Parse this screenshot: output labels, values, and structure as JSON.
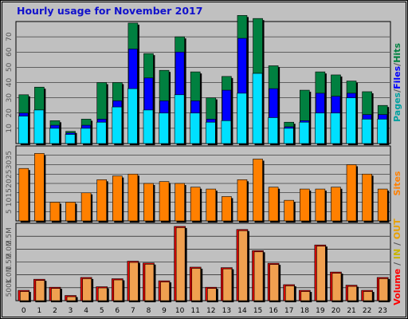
{
  "title": "Hourly usage for November 2017",
  "colors": {
    "pages": "#00a0a0",
    "files": "#0000ff",
    "hits": "#008040",
    "sites": "#ff8000",
    "visits": "#ffff00",
    "volume": "#ff0000",
    "in": "#c8b400",
    "out": "#e8a000",
    "slash": "#555555"
  },
  "chart_data": [
    {
      "type": "bar",
      "panel": "pages_files_hits",
      "categories": [
        "0",
        "1",
        "2",
        "3",
        "4",
        "5",
        "6",
        "7",
        "8",
        "9",
        "10",
        "11",
        "12",
        "13",
        "14",
        "15",
        "16",
        "17",
        "18",
        "19",
        "20",
        "21",
        "22",
        "23"
      ],
      "yticks": [
        10,
        20,
        30,
        40,
        50,
        60,
        70
      ],
      "ylim": [
        0,
        80
      ],
      "side_label": {
        "pages": "Pages",
        "files": "Files",
        "hits": "Hits"
      },
      "series": [
        {
          "name": "Hits",
          "values": [
            32,
            37,
            15,
            8,
            16,
            40,
            40,
            79,
            59,
            48,
            70,
            47,
            30,
            44,
            84,
            82,
            51,
            14,
            35,
            47,
            45,
            41,
            34,
            25
          ]
        },
        {
          "name": "Files",
          "values": [
            20,
            22,
            12,
            7,
            12,
            16,
            28,
            62,
            43,
            28,
            60,
            28,
            16,
            35,
            69,
            46,
            36,
            11,
            15,
            33,
            31,
            33,
            19,
            19
          ]
        },
        {
          "name": "Pages",
          "values": [
            18,
            22,
            10,
            6,
            10,
            14,
            24,
            36,
            22,
            20,
            32,
            20,
            14,
            15,
            33,
            46,
            17,
            10,
            14,
            20,
            20,
            30,
            16,
            16
          ]
        }
      ]
    },
    {
      "type": "bar",
      "panel": "sites",
      "categories": [
        "0",
        "1",
        "2",
        "3",
        "4",
        "5",
        "6",
        "7",
        "8",
        "9",
        "10",
        "11",
        "12",
        "13",
        "14",
        "15",
        "16",
        "17",
        "18",
        "19",
        "20",
        "21",
        "22",
        "23"
      ],
      "yticks": [
        5,
        10,
        15,
        20,
        25,
        30,
        35
      ],
      "ylim": [
        0,
        40
      ],
      "side_label": "Sites",
      "series": [
        {
          "name": "Sites",
          "values": [
            28,
            36,
            10,
            10,
            15,
            22,
            24,
            25,
            20,
            21,
            20,
            18,
            17,
            13,
            22,
            33,
            18,
            11,
            17,
            17,
            18,
            30,
            25,
            17
          ]
        }
      ]
    },
    {
      "type": "bar",
      "panel": "volume",
      "categories": [
        "0",
        "1",
        "2",
        "3",
        "4",
        "5",
        "6",
        "7",
        "8",
        "9",
        "10",
        "11",
        "12",
        "13",
        "14",
        "15",
        "16",
        "17",
        "18",
        "19",
        "20",
        "21",
        "22",
        "23"
      ],
      "yticks": [
        500000,
        1000000,
        1500000,
        2000000,
        2500000
      ],
      "ytick_labels": [
        "500K",
        "1.0M",
        "1.5M",
        "2.0M",
        "2.5M"
      ],
      "ylim": [
        0,
        3000000
      ],
      "side_label": {
        "volume": "Volume",
        "in": "IN",
        "out": "OUT"
      },
      "series": [
        {
          "name": "Volume",
          "values": [
            400000,
            830000,
            520000,
            200000,
            900000,
            540000,
            850000,
            1530000,
            1460000,
            770000,
            2880000,
            1300000,
            520000,
            1280000,
            2760000,
            1940000,
            1450000,
            620000,
            400000,
            2160000,
            1110000,
            600000,
            400000,
            900000
          ]
        }
      ]
    }
  ]
}
